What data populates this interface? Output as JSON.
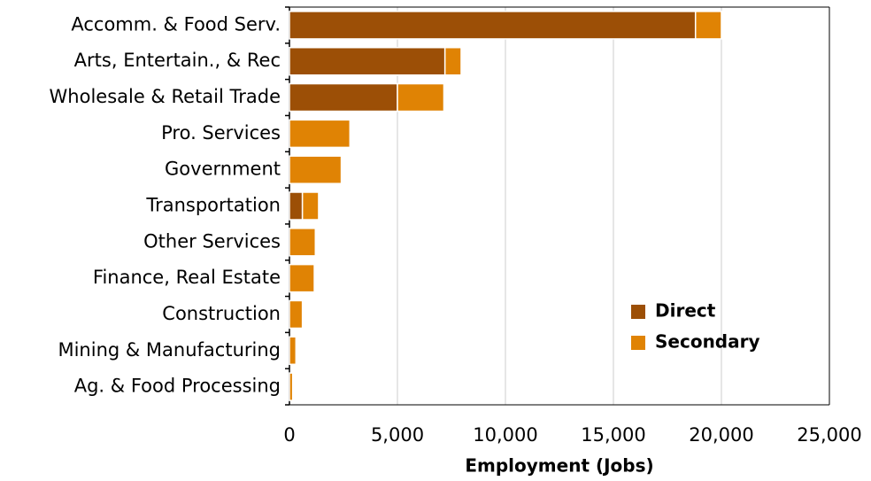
{
  "chart_data": {
    "type": "stacked-barh",
    "x_label": "Employment (Jobs)",
    "categories": [
      "Accomm. & Food Serv.",
      "Arts, Entertain., & Rec",
      "Wholesale & Retail Trade",
      "Pro. Services",
      "Government",
      "Transportation",
      "Other Services",
      "Finance, Real Estate",
      "Construction",
      "Mining & Manufacturing",
      "Ag. & Food Processing"
    ],
    "series": [
      {
        "name": "Direct",
        "color": "#9c4f06",
        "values": [
          18800,
          7200,
          5000,
          0,
          0,
          600,
          0,
          0,
          0,
          0,
          0
        ]
      },
      {
        "name": "Secondary",
        "color": "#e08304",
        "values": [
          1200,
          750,
          2150,
          2800,
          2400,
          750,
          1200,
          1150,
          600,
          300,
          150
        ]
      }
    ],
    "xlim": [
      0,
      25000
    ],
    "xticks": [
      0,
      {
        "value": 5000,
        "label": "5,000"
      },
      {
        "value": 10000,
        "label": "10,000"
      },
      {
        "value": 15000,
        "label": "15,000"
      },
      {
        "value": 20000,
        "label": "20,000"
      },
      {
        "value": 25000,
        "label": "25,000"
      }
    ],
    "grid": true,
    "legend": "lower-right"
  }
}
